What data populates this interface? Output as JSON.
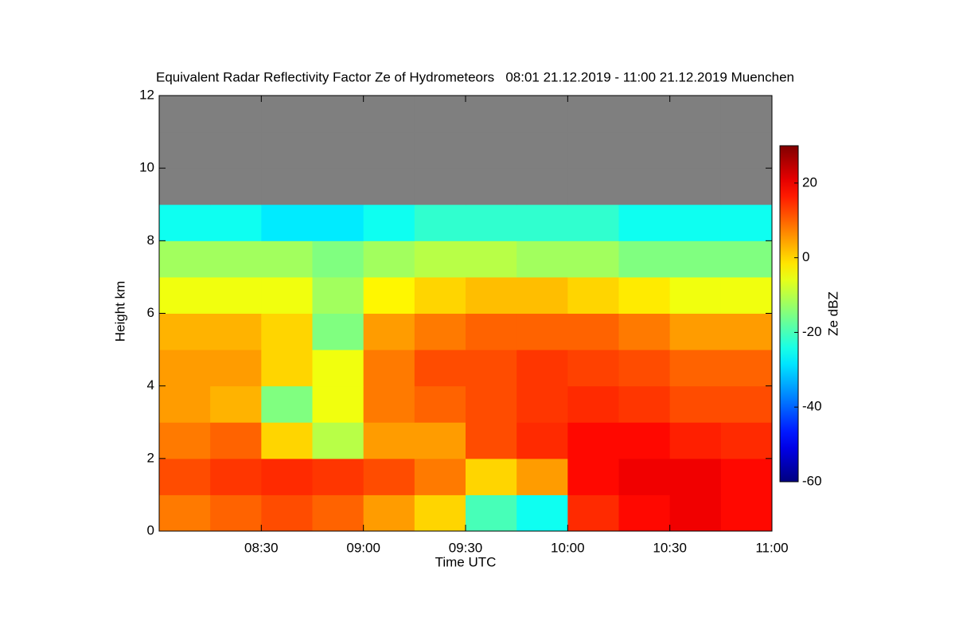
{
  "chart_data": {
    "type": "heatmap",
    "title": "Equivalent Radar Reflectivity Factor Ze of Hydrometeors   08:01 21.12.2019 - 11:00 21.12.2019 Muenchen",
    "x_label": "Time UTC",
    "y_label": "Height km",
    "colorbar_label": "Ze dBZ",
    "xlim": [
      480,
      660
    ],
    "xticks": [
      {
        "value": 510,
        "label": "08:30"
      },
      {
        "value": 540,
        "label": "09:00"
      },
      {
        "value": 570,
        "label": "09:30"
      },
      {
        "value": 600,
        "label": "10:00"
      },
      {
        "value": 630,
        "label": "10:30"
      },
      {
        "value": 660,
        "label": "11:00"
      }
    ],
    "ylim": [
      0,
      12
    ],
    "yticks": [
      0,
      2,
      4,
      6,
      8,
      10,
      12
    ],
    "zlim": [
      -60,
      30
    ],
    "zticks": [
      -60,
      -40,
      -20,
      0,
      20
    ],
    "missing_color": "#7f7f7f",
    "xbins": [
      480,
      495,
      510,
      525,
      540,
      555,
      570,
      585,
      600,
      615,
      630,
      645,
      660
    ],
    "ybins": [
      0,
      1,
      2,
      3,
      4,
      5,
      6,
      7,
      8,
      9,
      10,
      11,
      12
    ],
    "z": [
      [
        8,
        10,
        12,
        10,
        5,
        0,
        -20,
        -25,
        15,
        18,
        20,
        18
      ],
      [
        12,
        14,
        15,
        14,
        12,
        8,
        0,
        5,
        18,
        20,
        20,
        18
      ],
      [
        8,
        10,
        0,
        -10,
        5,
        5,
        12,
        15,
        18,
        18,
        16,
        15
      ],
      [
        5,
        3,
        -15,
        -5,
        8,
        10,
        12,
        14,
        15,
        14,
        12,
        12
      ],
      [
        5,
        5,
        0,
        -5,
        8,
        12,
        12,
        14,
        13,
        12,
        10,
        10
      ],
      [
        3,
        3,
        0,
        -15,
        5,
        8,
        10,
        10,
        10,
        8,
        5,
        5
      ],
      [
        -5,
        -5,
        -5,
        -12,
        -3,
        0,
        2,
        2,
        0,
        -2,
        -5,
        -5
      ],
      [
        -12,
        -12,
        -12,
        -15,
        -12,
        -10,
        -10,
        -12,
        -12,
        -15,
        -15,
        -15
      ],
      [
        -25,
        -25,
        -28,
        -28,
        -25,
        -22,
        -22,
        -22,
        -22,
        -25,
        -25,
        -25
      ],
      [
        null,
        null,
        null,
        null,
        null,
        null,
        null,
        null,
        null,
        null,
        null,
        null
      ],
      [
        null,
        null,
        null,
        null,
        null,
        null,
        null,
        null,
        null,
        null,
        null,
        null
      ],
      [
        null,
        null,
        null,
        null,
        null,
        null,
        null,
        null,
        null,
        null,
        null,
        null
      ]
    ]
  }
}
